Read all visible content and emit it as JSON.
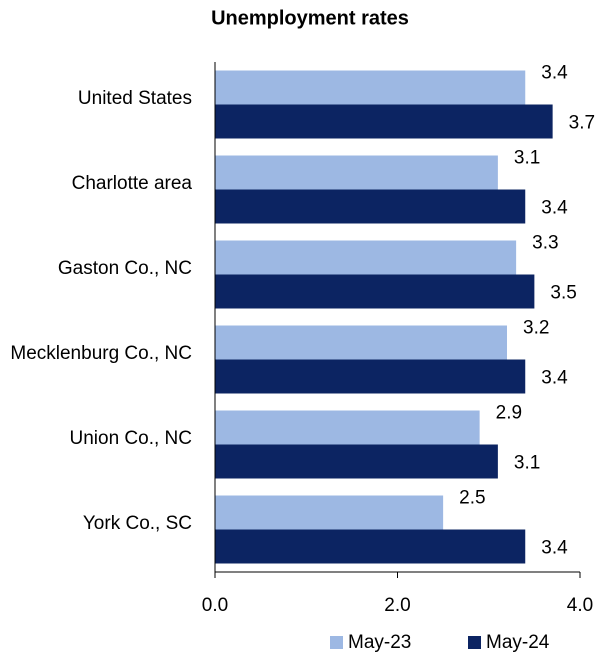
{
  "chart_data": {
    "type": "barh",
    "title": "Unemployment rates",
    "categories": [
      "United States",
      "Charlotte area",
      "Gaston Co., NC",
      "Mecklenburg Co., NC",
      "Union Co., NC",
      "York Co., SC"
    ],
    "series": [
      {
        "name": "May-23",
        "color": "#9db8e3",
        "values": [
          3.4,
          3.1,
          3.3,
          3.2,
          2.9,
          2.5
        ]
      },
      {
        "name": "May-24",
        "color": "#0c2462",
        "values": [
          3.7,
          3.4,
          3.5,
          3.4,
          3.1,
          3.4
        ]
      }
    ],
    "xlim": [
      0,
      4
    ],
    "xticks": [
      {
        "value": 0,
        "label": "0.0"
      },
      {
        "value": 2,
        "label": "2.0"
      },
      {
        "value": 4,
        "label": "4.0"
      }
    ],
    "legend": "bottom"
  }
}
